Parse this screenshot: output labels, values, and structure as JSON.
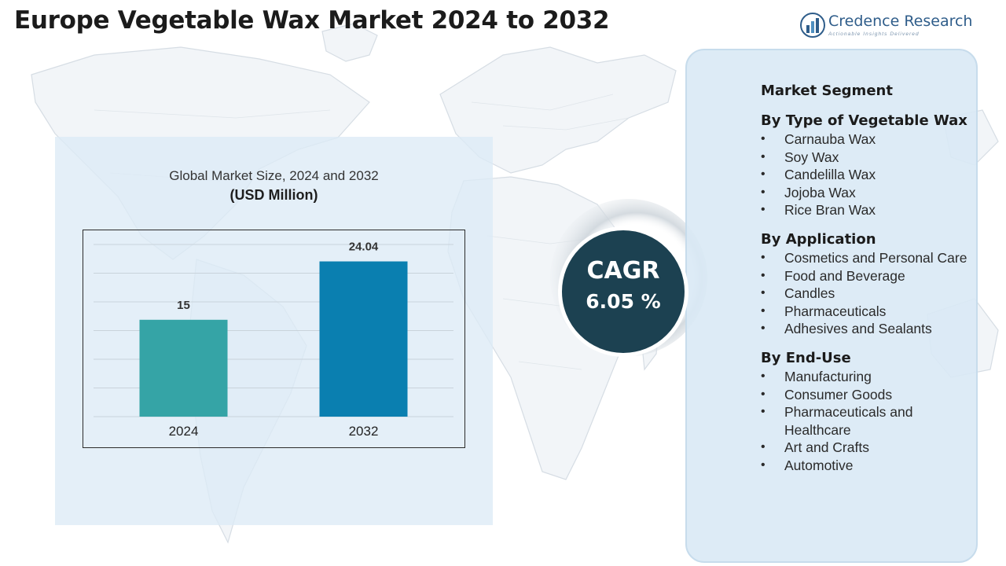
{
  "title": "Europe Vegetable Wax Market 2024 to 2032",
  "logo": {
    "name": "Credence Research",
    "tagline": "Actionable Insights Delivered",
    "icon": "bar-chart-logo-icon"
  },
  "chart_data": {
    "type": "bar",
    "title": "Global Market Size, 2024 and 2032",
    "subtitle": "(USD Million)",
    "categories": [
      "2024",
      "2032"
    ],
    "values": [
      15,
      24.04
    ],
    "value_labels": [
      "15",
      "24.04"
    ],
    "colors": [
      "#35a4a6",
      "#0a7fb0"
    ],
    "ylim": [
      0,
      28
    ],
    "grid": true,
    "xlabel": "",
    "ylabel": ""
  },
  "cagr": {
    "label": "CAGR",
    "value": "6.05 %"
  },
  "segments": {
    "title": "Market Segment",
    "groups": [
      {
        "heading": "By Type of Vegetable Wax",
        "items": [
          "Carnauba Wax",
          "Soy Wax",
          "Candelilla Wax",
          "Jojoba Wax",
          "Rice Bran Wax"
        ]
      },
      {
        "heading": "By Application",
        "items": [
          "Cosmetics and Personal Care",
          "Food and Beverage",
          "Candles",
          "Pharmaceuticals",
          "Adhesives and Sealants"
        ]
      },
      {
        "heading": "By End-Use",
        "items": [
          "Manufacturing",
          "Consumer Goods",
          "Pharmaceuticals and Healthcare",
          "Art and Crafts",
          "Automotive"
        ]
      }
    ]
  }
}
